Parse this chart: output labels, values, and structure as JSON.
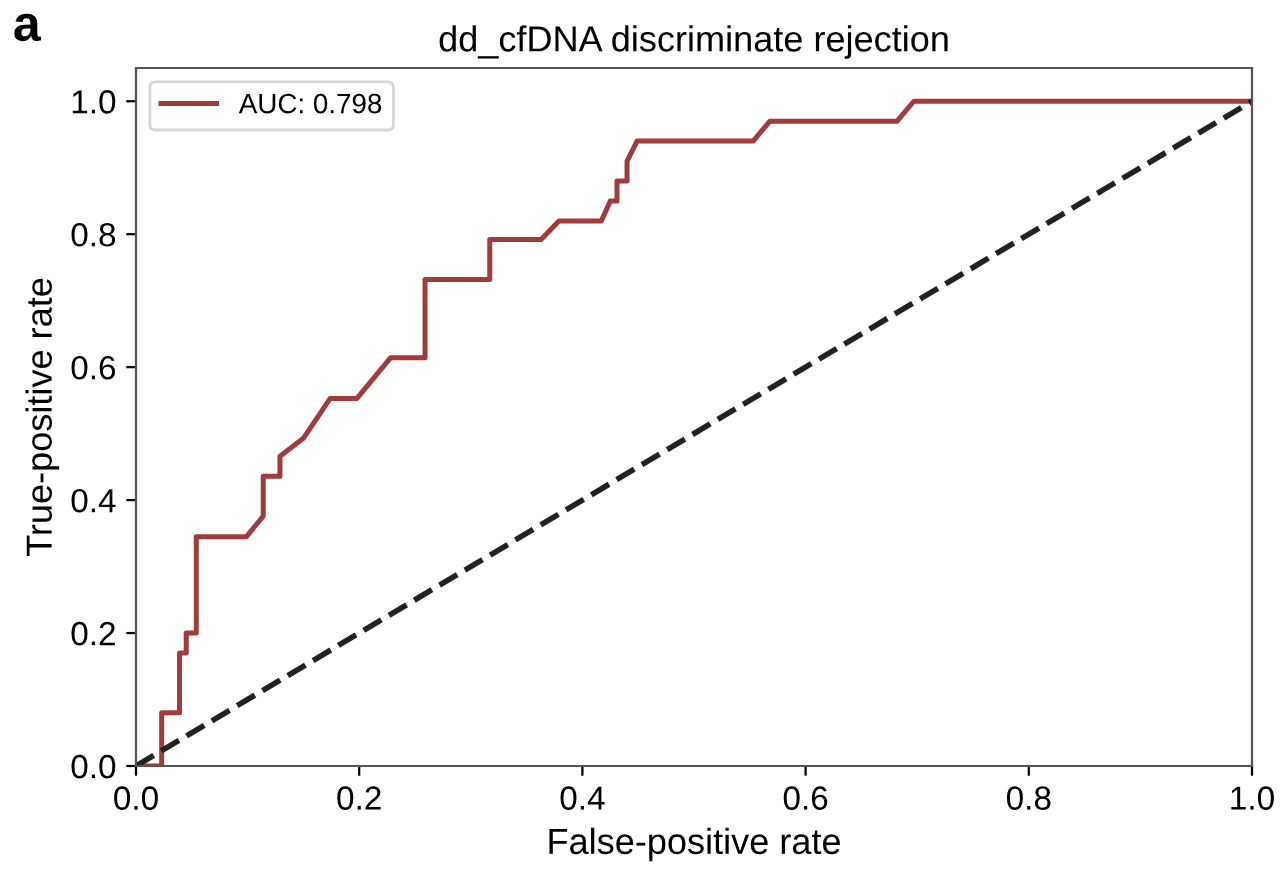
{
  "chart_data": {
    "type": "line",
    "title": "dd_cfDNA discriminate rejection",
    "xlabel": "False-positive rate",
    "ylabel": "True-positive rate",
    "annotations": [
      "a"
    ],
    "series": [
      {
        "name": "AUC: 0.798",
        "color": "#a23b3b",
        "line_style": "solid",
        "x": [
          0,
          0.023,
          0.023,
          0.039,
          0.039,
          0.045,
          0.045,
          0.054,
          0.054,
          0.099,
          0.114,
          0.114,
          0.129,
          0.129,
          0.15,
          0.174,
          0.198,
          0.228,
          0.259,
          0.259,
          0.317,
          0.317,
          0.363,
          0.379,
          0.417,
          0.425,
          0.431,
          0.431,
          0.44,
          0.44,
          0.449,
          0.553,
          0.568,
          0.682,
          0.697,
          1.0
        ],
        "values": [
          0,
          0,
          0.08,
          0.08,
          0.17,
          0.17,
          0.2,
          0.2,
          0.345,
          0.345,
          0.376,
          0.436,
          0.436,
          0.466,
          0.493,
          0.553,
          0.553,
          0.614,
          0.614,
          0.732,
          0.732,
          0.792,
          0.792,
          0.82,
          0.82,
          0.85,
          0.85,
          0.88,
          0.88,
          0.91,
          0.94,
          0.94,
          0.97,
          0.97,
          1.0,
          1.0
        ]
      },
      {
        "color": "#222222",
        "line_style": "dashed",
        "x": [
          0,
          1
        ],
        "values": [
          0,
          1
        ]
      }
    ],
    "xlim": [
      0,
      1
    ],
    "ylim": [
      0,
      1.05
    ],
    "xticks": [
      {
        "value": 0,
        "label": "0.0"
      },
      0.2,
      0.4,
      0.6,
      0.8,
      {
        "value": 1,
        "label": "1.0"
      }
    ],
    "yticks": [
      {
        "value": 0,
        "label": "0.0"
      },
      0.2,
      0.4,
      0.6,
      0.8,
      {
        "value": 1,
        "label": "1.0"
      }
    ],
    "grid": false,
    "legend": "top left",
    "marker": "none"
  }
}
